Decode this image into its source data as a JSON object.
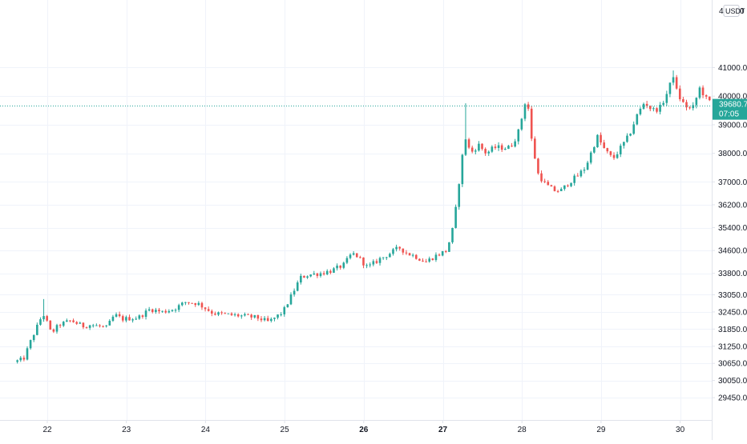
{
  "colors": {
    "up": "#26a69a",
    "down": "#ef5350",
    "grid": "#f0f3fa",
    "axis_text": "#131722",
    "axis_line": "#e0e3eb",
    "price_line": "#26a69a",
    "price_label_bg": "#26a69a",
    "price_label_text": "#ffffff"
  },
  "price_axis": {
    "currency": "USDT",
    "top_partial": "4",
    "top_partial_right": "0",
    "scale": "log"
  },
  "last_price": {
    "value": "39680.72",
    "countdown": "07:05"
  },
  "chart_data": {
    "type": "candlestick",
    "price_ticks": [
      "41000.00",
      "40000.00",
      "39000.00",
      "38000.00",
      "37000.00",
      "36200.00",
      "35400.00",
      "34600.00",
      "33800.00",
      "33050.00",
      "32450.00",
      "31850.00",
      "31250.00",
      "30650.00",
      "30050.00",
      "29450.00"
    ],
    "date_ticks": [
      {
        "label": "22",
        "bold": false
      },
      {
        "label": "23",
        "bold": false
      },
      {
        "label": "24",
        "bold": false
      },
      {
        "label": "25",
        "bold": false
      },
      {
        "label": "26",
        "bold": true
      },
      {
        "label": "27",
        "bold": true
      },
      {
        "label": "28",
        "bold": false
      },
      {
        "label": "29",
        "bold": false
      },
      {
        "label": "30",
        "bold": false
      }
    ],
    "x_range_days": [
      21.6,
      30.5
    ],
    "y_range": [
      29150,
      41400
    ],
    "grid": true,
    "close_path": [
      [
        21.58,
        30700
      ],
      [
        21.7,
        30800
      ],
      [
        21.8,
        31500
      ],
      [
        21.93,
        32300
      ],
      [
        21.96,
        32350
      ],
      [
        22.05,
        31700
      ],
      [
        22.15,
        32000
      ],
      [
        22.3,
        32150
      ],
      [
        22.45,
        31950
      ],
      [
        22.55,
        32000
      ],
      [
        22.75,
        31900
      ],
      [
        22.85,
        32350
      ],
      [
        22.95,
        32200
      ],
      [
        23.15,
        32250
      ],
      [
        23.3,
        32550
      ],
      [
        23.45,
        32450
      ],
      [
        23.6,
        32550
      ],
      [
        23.75,
        32800
      ],
      [
        23.9,
        32750
      ],
      [
        24.1,
        32400
      ],
      [
        24.3,
        32350
      ],
      [
        24.5,
        32300
      ],
      [
        24.65,
        32250
      ],
      [
        24.8,
        32100
      ],
      [
        24.98,
        32450
      ],
      [
        25.1,
        33100
      ],
      [
        25.2,
        33650
      ],
      [
        25.3,
        33750
      ],
      [
        25.45,
        33800
      ],
      [
        25.6,
        33900
      ],
      [
        25.75,
        34100
      ],
      [
        25.85,
        34500
      ],
      [
        25.92,
        34400
      ],
      [
        26.05,
        34000
      ],
      [
        26.2,
        34300
      ],
      [
        26.3,
        34450
      ],
      [
        26.45,
        34700
      ],
      [
        26.55,
        34500
      ],
      [
        26.65,
        34400
      ],
      [
        26.78,
        34200
      ],
      [
        26.9,
        34400
      ],
      [
        27.05,
        34600
      ],
      [
        27.14,
        35500
      ],
      [
        27.2,
        36900
      ],
      [
        27.28,
        38600
      ],
      [
        27.35,
        38000
      ],
      [
        27.45,
        38300
      ],
      [
        27.55,
        38000
      ],
      [
        27.65,
        38200
      ],
      [
        27.75,
        38200
      ],
      [
        27.85,
        38200
      ],
      [
        27.95,
        38700
      ],
      [
        28.02,
        39500
      ],
      [
        28.06,
        40100
      ],
      [
        28.12,
        38500
      ],
      [
        28.2,
        37300
      ],
      [
        28.3,
        36900
      ],
      [
        28.4,
        36700
      ],
      [
        28.5,
        36700
      ],
      [
        28.6,
        37000
      ],
      [
        28.7,
        37200
      ],
      [
        28.8,
        37500
      ],
      [
        28.9,
        38200
      ],
      [
        28.95,
        38600
      ],
      [
        29.05,
        38100
      ],
      [
        29.15,
        37800
      ],
      [
        29.25,
        38200
      ],
      [
        29.35,
        38600
      ],
      [
        29.45,
        39300
      ],
      [
        29.55,
        39800
      ],
      [
        29.65,
        39500
      ],
      [
        29.75,
        39600
      ],
      [
        29.85,
        40200
      ],
      [
        29.92,
        40800
      ],
      [
        29.96,
        40100
      ],
      [
        30.05,
        39700
      ],
      [
        30.15,
        39500
      ],
      [
        30.25,
        40300
      ],
      [
        30.35,
        39800
      ],
      [
        30.45,
        39850
      ],
      [
        30.5,
        39680
      ]
    ]
  }
}
